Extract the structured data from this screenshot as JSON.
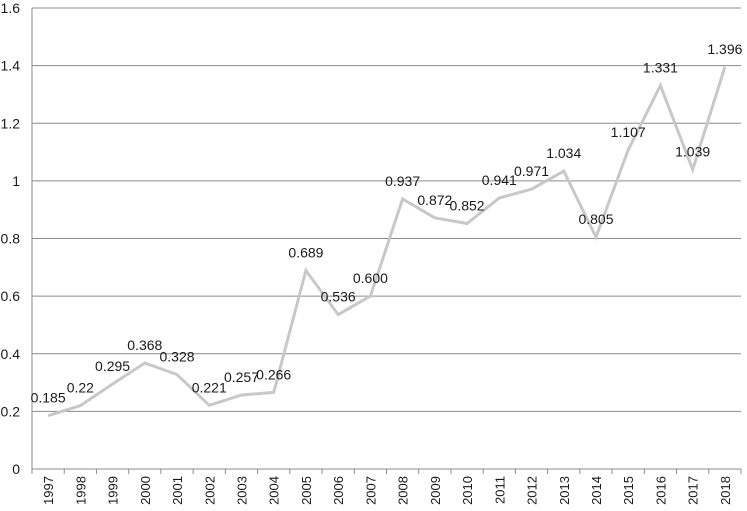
{
  "chart_data": {
    "type": "line",
    "title": "",
    "xlabel": "",
    "ylabel": "",
    "categories": [
      "1997",
      "1998",
      "1999",
      "2000",
      "2001",
      "2002",
      "2003",
      "2004",
      "2005",
      "2006",
      "2007",
      "2008",
      "2009",
      "2010",
      "2011",
      "2012",
      "2013",
      "2014",
      "2015",
      "2016",
      "2017",
      "2018"
    ],
    "series": [
      {
        "values": [
          0.185,
          0.22,
          0.295,
          0.368,
          0.328,
          0.221,
          0.257,
          0.266,
          0.689,
          0.536,
          0.6,
          0.937,
          0.872,
          0.852,
          0.941,
          0.971,
          1.034,
          0.805,
          1.107,
          1.331,
          1.039,
          1.396
        ],
        "data_labels": [
          "0.185",
          "0.22",
          "0.295",
          "0.368",
          "0.328",
          "0.221",
          "0.257",
          "0.266",
          "0.689",
          "0.536",
          "0.600",
          "0.937",
          "0.872",
          "0.852",
          "0.941",
          "0.971",
          "1.034",
          "0.805",
          "1.107",
          "1.331",
          "1.039",
          "1.396"
        ],
        "color": "#c8c8c8"
      }
    ],
    "ylim": [
      0,
      1.6
    ],
    "yticks": [
      "0",
      "0.2",
      "0.4",
      "0.6",
      "0.8",
      "1",
      "1.2",
      "1.4",
      "1.6"
    ],
    "grid": true,
    "legend": "none",
    "gridline_color": "#8c8c8c"
  }
}
